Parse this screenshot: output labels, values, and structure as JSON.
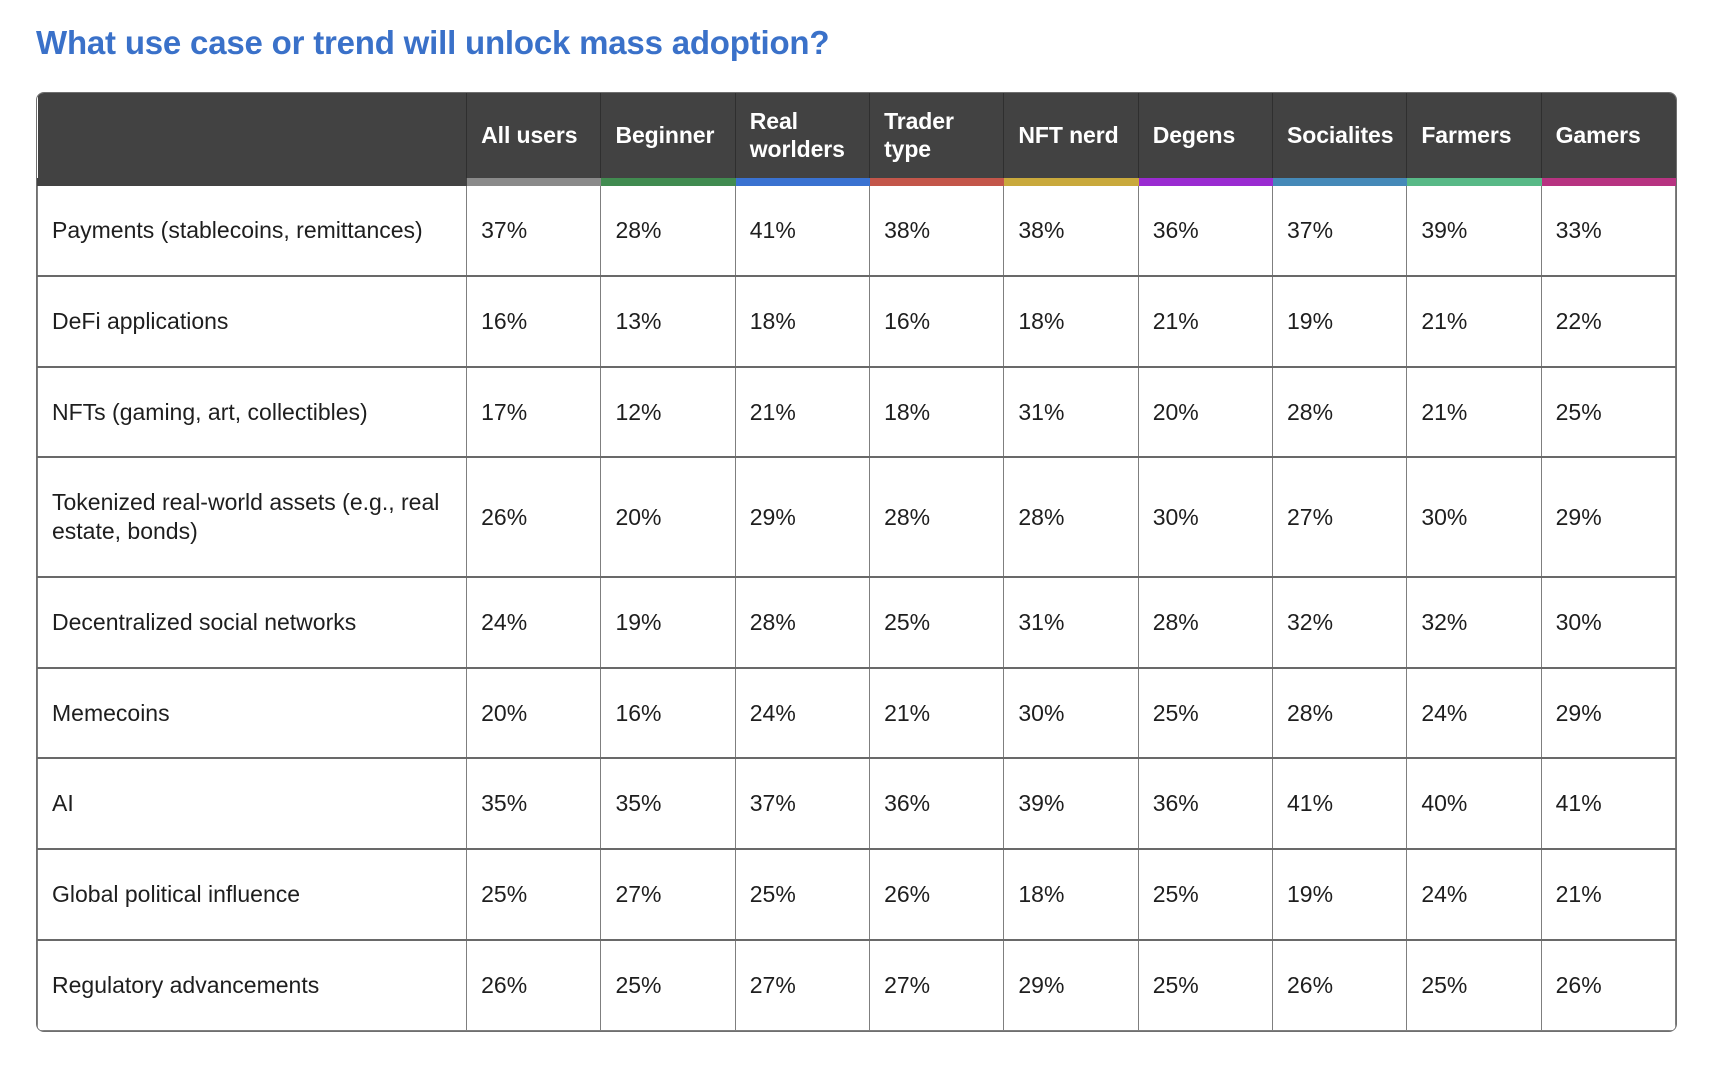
{
  "title": {
    "text": "What use case or trend will unlock mass adoption?",
    "color": "#3a71c9"
  },
  "table_style": {
    "header_bg": "#424242",
    "header_text_color": "#ffffff",
    "grid_color": "#7f7f7f"
  },
  "chart_data": {
    "type": "table",
    "title": "What use case or trend will unlock mass adoption?",
    "columns": [
      {
        "label": "All users",
        "accent": "#8a8a8a"
      },
      {
        "label": "Beginner",
        "accent": "#418b50"
      },
      {
        "label": "Real worlders",
        "accent": "#3a72d1"
      },
      {
        "label": "Trader type",
        "accent": "#c3564a"
      },
      {
        "label": "NFT nerd",
        "accent": "#c9a93c"
      },
      {
        "label": "Degens",
        "accent": "#9a2bd1"
      },
      {
        "label": "Socialites",
        "accent": "#4589b8"
      },
      {
        "label": "Farmers",
        "accent": "#58b987"
      },
      {
        "label": "Gamers",
        "accent": "#b73381"
      }
    ],
    "rows": [
      {
        "label": "Payments (stablecoins, remittances)",
        "values": [
          "37%",
          "28%",
          "41%",
          "38%",
          "38%",
          "36%",
          "37%",
          "39%",
          "33%"
        ]
      },
      {
        "label": "DeFi applications",
        "values": [
          "16%",
          "13%",
          "18%",
          "16%",
          "18%",
          "21%",
          "19%",
          "21%",
          "22%"
        ]
      },
      {
        "label": "NFTs (gaming, art, collectibles)",
        "values": [
          "17%",
          "12%",
          "21%",
          "18%",
          "31%",
          "20%",
          "28%",
          "21%",
          "25%"
        ]
      },
      {
        "label": "Tokenized real-world assets (e.g., real estate, bonds)",
        "values": [
          "26%",
          "20%",
          "29%",
          "28%",
          "28%",
          "30%",
          "27%",
          "30%",
          "29%"
        ]
      },
      {
        "label": "Decentralized social networks",
        "values": [
          "24%",
          "19%",
          "28%",
          "25%",
          "31%",
          "28%",
          "32%",
          "32%",
          "30%"
        ]
      },
      {
        "label": "Memecoins",
        "values": [
          "20%",
          "16%",
          "24%",
          "21%",
          "30%",
          "25%",
          "28%",
          "24%",
          "29%"
        ]
      },
      {
        "label": "AI",
        "values": [
          "35%",
          "35%",
          "37%",
          "36%",
          "39%",
          "36%",
          "41%",
          "40%",
          "41%"
        ]
      },
      {
        "label": "Global political influence",
        "values": [
          "25%",
          "27%",
          "25%",
          "26%",
          "18%",
          "25%",
          "19%",
          "24%",
          "21%"
        ]
      },
      {
        "label": "Regulatory advancements",
        "values": [
          "26%",
          "25%",
          "27%",
          "27%",
          "29%",
          "25%",
          "26%",
          "25%",
          "26%"
        ]
      }
    ]
  }
}
